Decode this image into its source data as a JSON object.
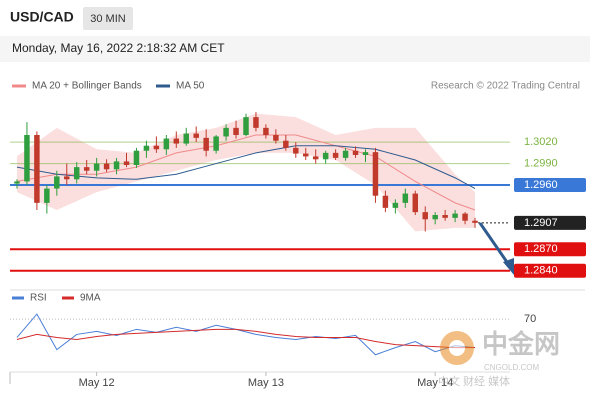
{
  "header": {
    "symbol": "USD/CAD",
    "interval": "30 MIN",
    "timestamp": "Monday, May 16, 2022 2:18:32 AM CET",
    "credit": "Research © 2022 Trading Central"
  },
  "watermark": {
    "name": "中金网",
    "site": "CNGOLD.COM",
    "tagline": "中文 财经 媒体"
  },
  "chart_data": [
    {
      "type": "candlestick",
      "legend": [
        {
          "name": "MA 20 + Bollinger Bands",
          "color": "#f08a8a"
        },
        {
          "name": "MA 50",
          "color": "#2f5b8f"
        }
      ],
      "up_color": "#2e9e3e",
      "down_color": "#c0392b",
      "ylim": [
        1.282,
        1.3086
      ],
      "xlim": [
        -0.5,
        46.5
      ],
      "xticks": [
        {
          "value": 8,
          "label": "May 12"
        },
        {
          "value": 25,
          "label": "May 13"
        },
        {
          "value": 42,
          "label": "May 14"
        }
      ],
      "levels": [
        {
          "value": 1.302,
          "label": "1.3020",
          "color": "#7cb342",
          "kind": "text",
          "style": "solid"
        },
        {
          "value": 1.299,
          "label": "1.2990",
          "color": "#7cb342",
          "kind": "text",
          "style": "solid"
        },
        {
          "value": 1.296,
          "label": "1.2960",
          "color": "#3a78d8",
          "kind": "box",
          "style": "solid"
        },
        {
          "value": 1.2907,
          "label": "1.2907",
          "color": "#222222",
          "kind": "box",
          "style": "dotted"
        },
        {
          "value": 1.287,
          "label": "1.2870",
          "color": "#e01010",
          "kind": "box",
          "style": "solid"
        },
        {
          "value": 1.284,
          "label": "1.2840",
          "color": "#e01010",
          "kind": "box",
          "style": "solid"
        }
      ],
      "ohlc": [
        [
          1.2962,
          1.2968,
          1.2955,
          1.2965
        ],
        [
          1.2965,
          1.3048,
          1.296,
          1.303
        ],
        [
          1.303,
          1.3035,
          1.2925,
          1.2935
        ],
        [
          1.2935,
          1.296,
          1.292,
          1.2955
        ],
        [
          1.2955,
          1.298,
          1.2945,
          1.2972
        ],
        [
          1.2972,
          1.299,
          1.296,
          1.2968
        ],
        [
          1.2968,
          1.2992,
          1.2962,
          1.2985
        ],
        [
          1.2985,
          1.2995,
          1.2975,
          1.298
        ],
        [
          1.298,
          1.2998,
          1.2972,
          1.299
        ],
        [
          1.299,
          1.2996,
          1.2978,
          1.2982
        ],
        [
          1.2982,
          1.2998,
          1.2975,
          1.2993
        ],
        [
          1.2993,
          1.3005,
          1.2985,
          1.2988
        ],
        [
          1.2988,
          1.3012,
          1.2984,
          1.3008
        ],
        [
          1.3008,
          1.3022,
          1.2998,
          1.3015
        ],
        [
          1.3015,
          1.3028,
          1.3005,
          1.301
        ],
        [
          1.301,
          1.303,
          1.3002,
          1.3025
        ],
        [
          1.3025,
          1.3035,
          1.3012,
          1.3018
        ],
        [
          1.3018,
          1.304,
          1.3015,
          1.3032
        ],
        [
          1.3032,
          1.3042,
          1.302,
          1.3026
        ],
        [
          1.3026,
          1.3038,
          1.3,
          1.3008
        ],
        [
          1.3008,
          1.303,
          1.3004,
          1.3028
        ],
        [
          1.3028,
          1.3045,
          1.3022,
          1.304
        ],
        [
          1.304,
          1.305,
          1.3025,
          1.303
        ],
        [
          1.303,
          1.306,
          1.3028,
          1.3055
        ],
        [
          1.3055,
          1.3062,
          1.3035,
          1.304
        ],
        [
          1.304,
          1.3045,
          1.3025,
          1.303
        ],
        [
          1.303,
          1.3038,
          1.3018,
          1.3022
        ],
        [
          1.3022,
          1.303,
          1.3008,
          1.3012
        ],
        [
          1.3012,
          1.302,
          1.2998,
          1.3004
        ],
        [
          1.3004,
          1.3012,
          1.2995,
          1.3
        ],
        [
          1.3,
          1.301,
          1.299,
          1.2996
        ],
        [
          1.2996,
          1.3008,
          1.299,
          1.3005
        ],
        [
          1.3005,
          1.301,
          1.2995,
          1.2998
        ],
        [
          1.2998,
          1.3012,
          1.2994,
          1.3008
        ],
        [
          1.3008,
          1.3014,
          1.2998,
          1.3002
        ],
        [
          1.3002,
          1.301,
          1.2992,
          1.3006
        ],
        [
          1.3006,
          1.3012,
          1.2935,
          1.2945
        ],
        [
          1.2945,
          1.2952,
          1.2922,
          1.2928
        ],
        [
          1.2928,
          1.294,
          1.292,
          1.2935
        ],
        [
          1.2935,
          1.2955,
          1.2928,
          1.2948
        ],
        [
          1.2948,
          1.2952,
          1.2918,
          1.2922
        ],
        [
          1.2922,
          1.293,
          1.2895,
          1.2912
        ],
        [
          1.2912,
          1.2922,
          1.2905,
          1.2918
        ],
        [
          1.2918,
          1.2925,
          1.291,
          1.2914
        ],
        [
          1.2914,
          1.2925,
          1.2908,
          1.292
        ],
        [
          1.292,
          1.2922,
          1.2905,
          1.291
        ],
        [
          1.291,
          1.2914,
          1.29,
          1.2907
        ]
      ],
      "overlay_x": [
        0,
        4,
        8,
        12,
        16,
        20,
        24,
        28,
        32,
        36,
        40,
        44,
        46
      ],
      "band_upper": [
        1.3,
        1.304,
        1.301,
        1.3005,
        1.303,
        1.304,
        1.306,
        1.3055,
        1.303,
        1.304,
        1.304,
        1.2975,
        1.295
      ],
      "band_lower": [
        1.295,
        1.2925,
        1.295,
        1.2965,
        1.298,
        1.2995,
        1.3005,
        1.3005,
        1.2995,
        1.296,
        1.2895,
        1.29,
        1.29
      ],
      "ma20": [
        1.2965,
        1.2975,
        1.2975,
        1.2985,
        1.3005,
        1.3015,
        1.303,
        1.303,
        1.3015,
        1.3,
        1.2965,
        1.2935,
        1.2925
      ],
      "ma50": [
        1.2985,
        1.2975,
        1.297,
        1.2968,
        1.2975,
        1.299,
        1.3005,
        1.3015,
        1.3015,
        1.301,
        1.2995,
        1.297,
        1.2955
      ]
    },
    {
      "type": "line",
      "xlim": [
        -0.5,
        46.5
      ],
      "ylim": [
        20,
        80
      ],
      "yticks": [
        70
      ],
      "x": [
        0,
        2,
        4,
        6,
        8,
        10,
        12,
        14,
        16,
        18,
        20,
        22,
        24,
        26,
        28,
        30,
        32,
        34,
        36,
        38,
        40,
        42,
        44,
        46
      ],
      "series": [
        {
          "name": "RSI",
          "color": "#4a7fd6",
          "values": [
            52,
            75,
            40,
            55,
            58,
            54,
            60,
            57,
            62,
            58,
            64,
            60,
            55,
            52,
            50,
            53,
            51,
            54,
            35,
            42,
            48,
            38,
            44,
            42
          ]
        },
        {
          "name": "9MA",
          "color": "#d42a2a",
          "values": [
            50,
            55,
            52,
            50,
            53,
            55,
            56,
            57,
            58,
            59,
            60,
            60,
            58,
            55,
            53,
            52,
            52,
            52,
            48,
            45,
            44,
            43,
            42,
            42
          ]
        }
      ]
    }
  ]
}
